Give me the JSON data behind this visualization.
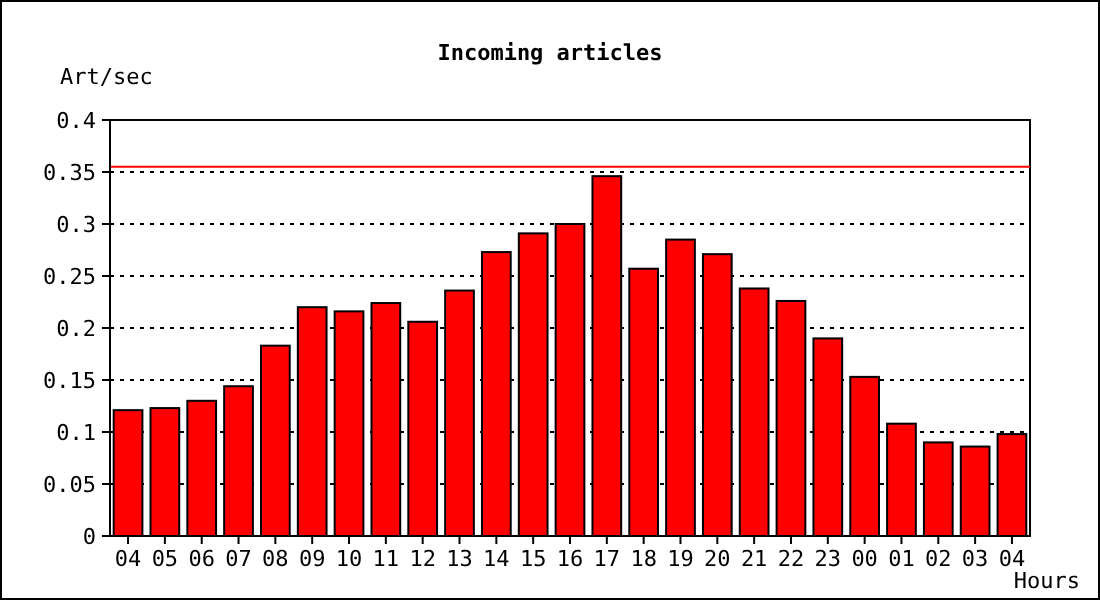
{
  "chart_data": {
    "type": "bar",
    "title": "Incoming articles",
    "ylabel": "Art/sec",
    "xlabel": "Hours",
    "categories": [
      "04",
      "05",
      "06",
      "07",
      "08",
      "09",
      "10",
      "11",
      "12",
      "13",
      "14",
      "15",
      "16",
      "17",
      "18",
      "19",
      "20",
      "21",
      "22",
      "23",
      "00",
      "01",
      "02",
      "03",
      "04"
    ],
    "values": [
      0.121,
      0.123,
      0.13,
      0.144,
      0.183,
      0.22,
      0.216,
      0.224,
      0.206,
      0.236,
      0.273,
      0.291,
      0.3,
      0.346,
      0.257,
      0.285,
      0.271,
      0.238,
      0.226,
      0.19,
      0.153,
      0.108,
      0.09,
      0.086,
      0.098
    ],
    "color": "#ff0000",
    "ylim": [
      0,
      0.4
    ],
    "yticks": [
      0,
      0.05,
      0.1,
      0.15,
      0.2,
      0.25,
      0.3,
      0.35,
      0.4
    ],
    "grid": "y",
    "ref_lines": [
      {
        "axis": "y",
        "value": 0.355,
        "color": "#ff0000"
      }
    ]
  }
}
